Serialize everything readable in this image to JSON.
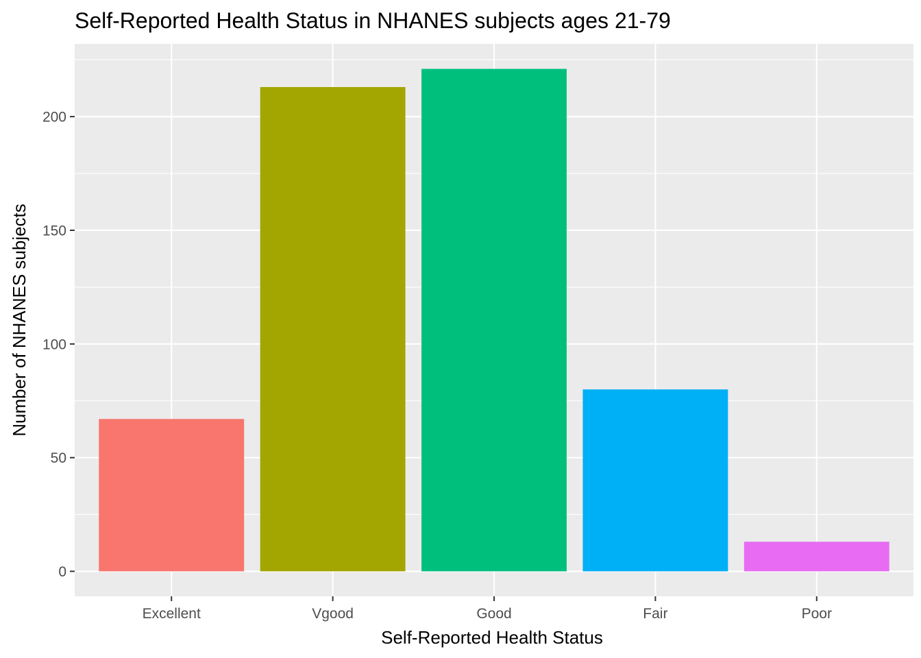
{
  "chart_data": {
    "type": "bar",
    "title": "Self-Reported Health Status in NHANES subjects ages 21-79",
    "xlabel": "Self-Reported Health Status",
    "ylabel": "Number of NHANES subjects",
    "categories": [
      "Excellent",
      "Vgood",
      "Good",
      "Fair",
      "Poor"
    ],
    "values": [
      67,
      213,
      221,
      80,
      13
    ],
    "colors": [
      "#F8766D",
      "#A3A500",
      "#00BF7D",
      "#00B0F6",
      "#E76BF3"
    ],
    "ylim": [
      -11,
      232
    ],
    "yticks": [
      0,
      50,
      100,
      150,
      200
    ],
    "grid": true,
    "panel_background": "#EBEBEB",
    "grid_color": "#FFFFFF",
    "legend": "none"
  }
}
